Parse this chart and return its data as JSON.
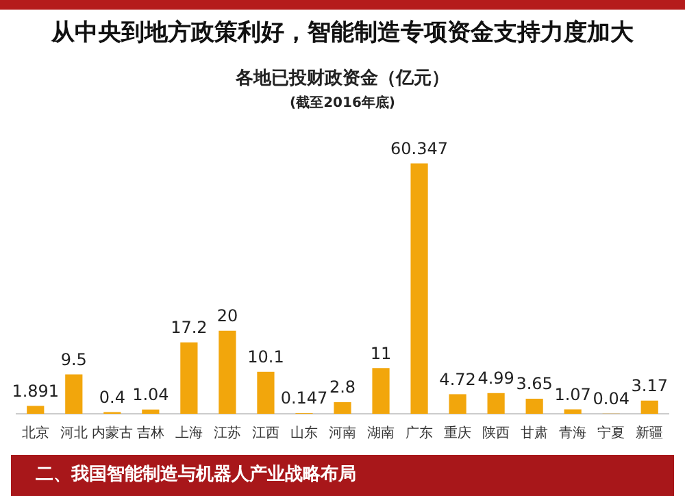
{
  "chart_data": {
    "type": "bar",
    "title": "各地已投财政资金（亿元）",
    "subtitle": "(截至2016年底)",
    "annotations": [
      "从中央到地方政策利好，智能制造专项资金支持力度加大",
      "二、我国智能制造与机器人产业战略布局"
    ],
    "categories": [
      "北京",
      "河北",
      "内蒙古",
      "吉林",
      "上海",
      "江苏",
      "江西",
      "山东",
      "河南",
      "湖南",
      "广东",
      "重庆",
      "陕西",
      "甘肃",
      "青海",
      "宁夏",
      "新疆"
    ],
    "values": [
      1.891,
      9.5,
      0.4,
      1.04,
      17.2,
      20,
      10.1,
      0.147,
      2.8,
      11,
      60.347,
      4.72,
      4.99,
      3.65,
      1.07,
      0.04,
      3.17
    ],
    "color": "#f2a60c",
    "data_labels": true,
    "grid": false,
    "legend": false
  }
}
